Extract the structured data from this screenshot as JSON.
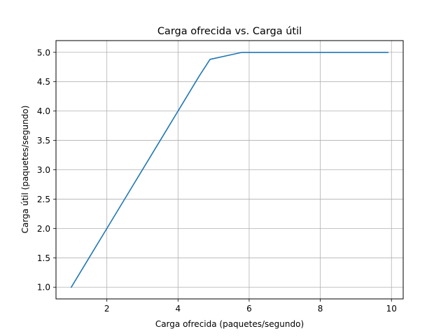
{
  "chart_data": {
    "type": "line",
    "title": "Carga ofrecida vs. Carga útil",
    "xlabel": "Carga ofrecida (paquetes/segundo)",
    "ylabel": "Carga útil (paquetes/segundo)",
    "xlim": [
      0.57,
      10.33
    ],
    "ylim": [
      0.8,
      5.2
    ],
    "xticks": [
      2,
      4,
      6,
      8,
      10
    ],
    "xtick_labels": [
      "2",
      "4",
      "6",
      "8",
      "10"
    ],
    "yticks": [
      1.0,
      1.5,
      2.0,
      2.5,
      3.0,
      3.5,
      4.0,
      4.5,
      5.0
    ],
    "ytick_labels": [
      "1.0",
      "1.5",
      "2.0",
      "2.5",
      "3.0",
      "3.5",
      "4.0",
      "4.5",
      "5.0"
    ],
    "grid": true,
    "series": [
      {
        "color": "#1f77b4",
        "x": [
          1.0,
          1.9,
          2.8,
          3.7,
          4.6,
          4.9,
          5.5,
          5.8,
          6.4,
          7.3,
          8.2,
          9.1,
          9.9
        ],
        "y": [
          1.0,
          1.9,
          2.8,
          3.7,
          4.6,
          4.88,
          4.96,
          5.0,
          5.0,
          5.0,
          5.0,
          5.0,
          5.0
        ]
      }
    ]
  }
}
